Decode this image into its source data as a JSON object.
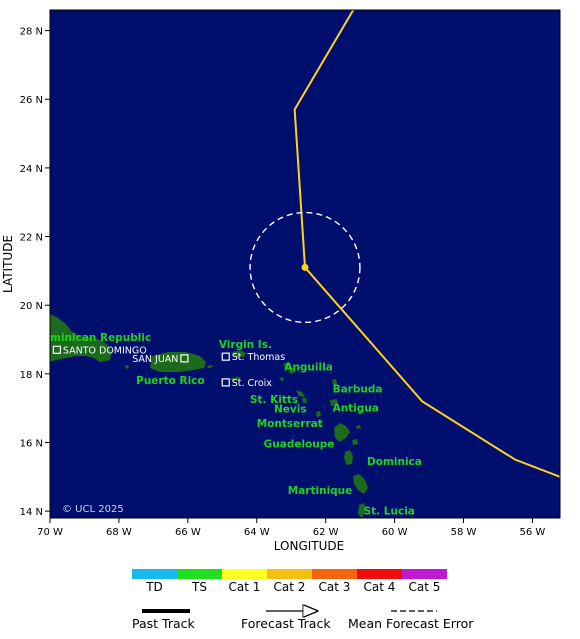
{
  "map": {
    "xlabel": "LONGITUDE",
    "ylabel": "LATITUDE",
    "copyright": "© UCL 2025",
    "lon_range": [
      -70,
      -55.2
    ],
    "lat_range": [
      13.8,
      28.6
    ],
    "x_ticks": [
      {
        "value": -70,
        "label": "70 W"
      },
      {
        "value": -68,
        "label": "68 W"
      },
      {
        "value": -66,
        "label": "66 W"
      },
      {
        "value": -64,
        "label": "64 W"
      },
      {
        "value": -62,
        "label": "62 W"
      },
      {
        "value": -60,
        "label": "60 W"
      },
      {
        "value": -58,
        "label": "58 W"
      },
      {
        "value": -56,
        "label": "56 W"
      }
    ],
    "y_ticks": [
      {
        "value": 14,
        "label": "14 N"
      },
      {
        "value": 16,
        "label": "16 N"
      },
      {
        "value": 18,
        "label": "18 N"
      },
      {
        "value": 20,
        "label": "20 N"
      },
      {
        "value": 22,
        "label": "22 N"
      },
      {
        "value": 24,
        "label": "24 N"
      },
      {
        "value": 26,
        "label": "26 N"
      },
      {
        "value": 28,
        "label": "28 N"
      }
    ],
    "colors": {
      "ocean": "#000e6e",
      "land": "#1c6b1c",
      "track": "#ffd21e",
      "error_circle": "#ffffff"
    },
    "current_position": {
      "lon": -62.6,
      "lat": 21.1
    },
    "error_circle_radius_deg": 1.6,
    "forecast_track": [
      {
        "lon": -55.2,
        "lat": 15.0
      },
      {
        "lon": -56.5,
        "lat": 15.5
      },
      {
        "lon": -59.2,
        "lat": 17.2
      },
      {
        "lon": -62.6,
        "lat": 21.1
      },
      {
        "lon": -62.9,
        "lat": 25.7
      },
      {
        "lon": -61.2,
        "lat": 28.6
      }
    ],
    "places": [
      {
        "name": "minican Republic",
        "lon": -70.0,
        "lat": 18.95
      },
      {
        "name": "Virgin Is.",
        "lon": -65.1,
        "lat": 18.75
      },
      {
        "name": "Anguilla",
        "lon": -63.2,
        "lat": 18.1
      },
      {
        "name": "Puerto Rico",
        "lon": -67.5,
        "lat": 17.7
      },
      {
        "name": "Barbuda",
        "lon": -61.8,
        "lat": 17.45
      },
      {
        "name": "St. Kitts",
        "lon": -64.2,
        "lat": 17.15
      },
      {
        "name": "Nevis",
        "lon": -63.5,
        "lat": 16.88
      },
      {
        "name": "Antigua",
        "lon": -61.8,
        "lat": 16.9
      },
      {
        "name": "Montserrat",
        "lon": -64.0,
        "lat": 16.45
      },
      {
        "name": "Guadeloupe",
        "lon": -63.8,
        "lat": 15.85
      },
      {
        "name": "Dominica",
        "lon": -60.8,
        "lat": 15.35
      },
      {
        "name": "Martinique",
        "lon": -63.1,
        "lat": 14.5
      },
      {
        "name": "St. Lucia",
        "lon": -60.9,
        "lat": 13.9
      }
    ],
    "cities": [
      {
        "name": "SANTO DOMINGO",
        "lon": -69.8,
        "lat": 18.7,
        "label_side": "right"
      },
      {
        "name": "SAN JUAN",
        "lon": -66.1,
        "lat": 18.45,
        "label_side": "left"
      },
      {
        "name": "St. Thomas",
        "lon": -64.9,
        "lat": 18.5,
        "label_side": "right"
      },
      {
        "name": "St. Croix",
        "lon": -64.9,
        "lat": 17.75,
        "label_side": "right"
      }
    ]
  },
  "legend": {
    "categories": [
      {
        "label": "TD",
        "color": "#17b9ef"
      },
      {
        "label": "TS",
        "color": "#20de20"
      },
      {
        "label": "Cat 1",
        "color": "#ffff26"
      },
      {
        "label": "Cat 2",
        "color": "#f5bf14"
      },
      {
        "label": "Cat 3",
        "color": "#f5650f"
      },
      {
        "label": "Cat 4",
        "color": "#ee0d0d"
      },
      {
        "label": "Cat 5",
        "color": "#c019d2"
      }
    ],
    "track_key": {
      "past": "Past Track",
      "forecast": "Forecast Track",
      "error": "Mean Forecast Error"
    }
  }
}
